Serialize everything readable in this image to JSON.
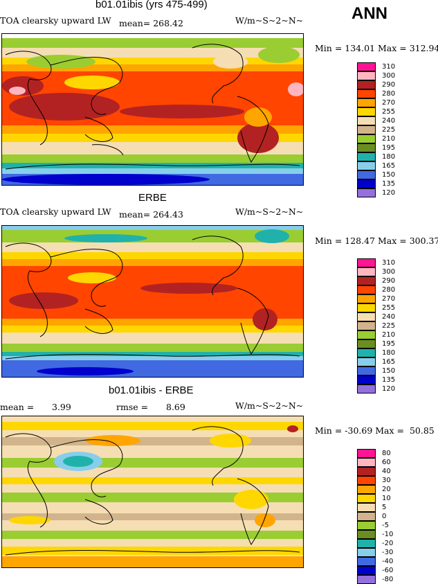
{
  "season": "ANN",
  "panels": [
    {
      "title": "b01.01ibis (yrs 475-499)",
      "left_label": "TOA clearsky upward LW",
      "stat_label": "mean= 268.42",
      "units": "W/m~S~2~N~",
      "minmax": "Min = 134.01 Max = 312.94",
      "legend": {
        "labels": [
          "310",
          "300",
          "290",
          "280",
          "270",
          "255",
          "240",
          "225",
          "210",
          "195",
          "180",
          "165",
          "150",
          "135",
          "120"
        ],
        "colors": [
          "#ff1493",
          "#ffb6c1",
          "#b22222",
          "#ff4500",
          "#ffa500",
          "#ffd700",
          "#f5deb3",
          "#d2b48c",
          "#9acd32",
          "#6b8e23",
          "#20b2aa",
          "#87ceeb",
          "#4169e1",
          "#0000cd",
          "#9370db"
        ]
      }
    },
    {
      "title": "ERBE",
      "left_label": "TOA clearsky upward LW",
      "stat_label": "mean= 264.43",
      "units": "W/m~S~2~N~",
      "minmax": "Min = 128.47 Max = 300.37",
      "legend": {
        "labels": [
          "310",
          "300",
          "290",
          "280",
          "270",
          "255",
          "240",
          "225",
          "210",
          "195",
          "180",
          "165",
          "150",
          "135",
          "120"
        ],
        "colors": [
          "#ff1493",
          "#ffb6c1",
          "#b22222",
          "#ff4500",
          "#ffa500",
          "#ffd700",
          "#f5deb3",
          "#d2b48c",
          "#9acd32",
          "#6b8e23",
          "#20b2aa",
          "#87ceeb",
          "#4169e1",
          "#0000cd",
          "#9370db"
        ]
      }
    },
    {
      "title": "b01.01ibis - ERBE",
      "mean_label": "mean =",
      "mean_value": "3.99",
      "rmse_label": "rmse =",
      "rmse_value": "8.69",
      "units": "W/m~S~2~N~",
      "minmax": "Min = -30.69 Max =  50.85",
      "legend": {
        "labels": [
          "80",
          "60",
          "40",
          "30",
          "20",
          "10",
          "5",
          "0",
          "-5",
          "-10",
          "-20",
          "-30",
          "-40",
          "-60",
          "-80"
        ],
        "colors": [
          "#ff1493",
          "#ffb6c1",
          "#b22222",
          "#ff4500",
          "#ffa500",
          "#ffd700",
          "#f5deb3",
          "#d2b48c",
          "#9acd32",
          "#6b8e23",
          "#20b2aa",
          "#87ceeb",
          "#4169e1",
          "#0000cd",
          "#9370db"
        ]
      }
    }
  ]
}
